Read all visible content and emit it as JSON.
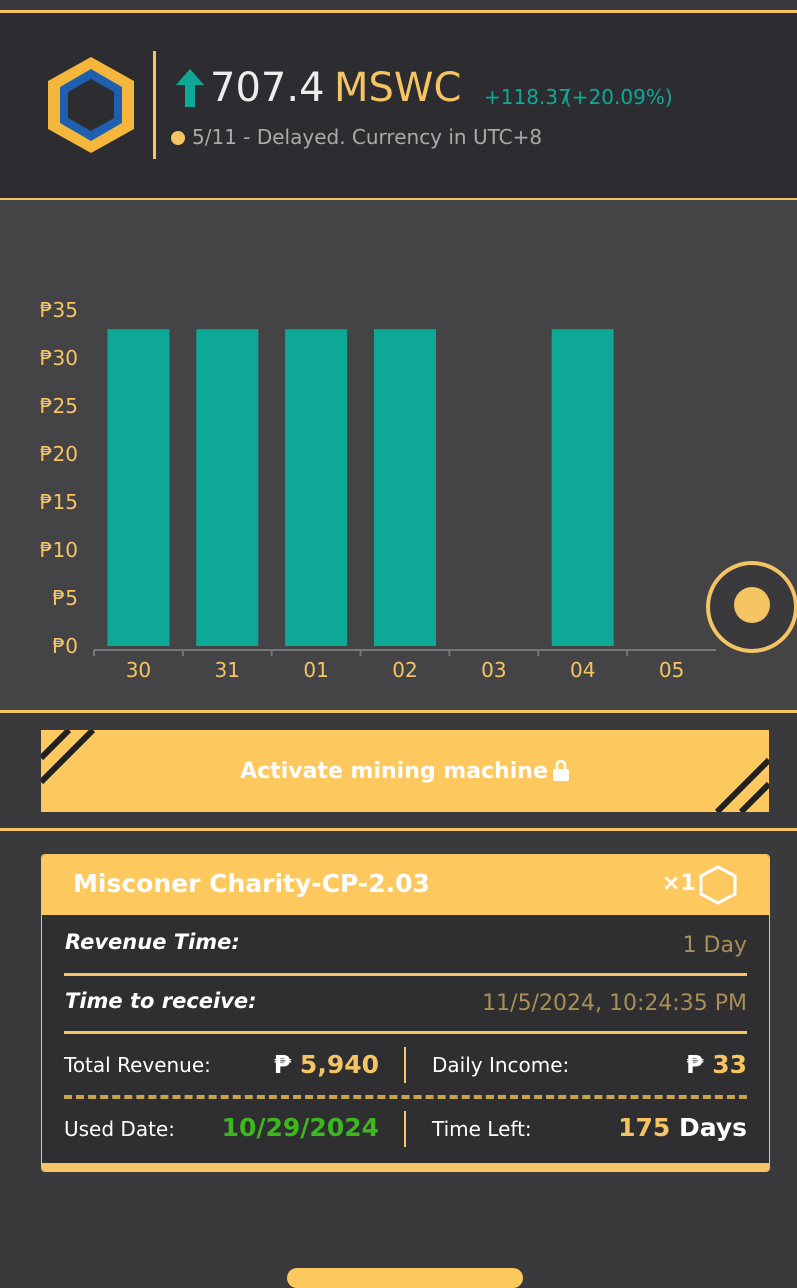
{
  "header": {
    "price": "707.4",
    "currency": "MSWC",
    "change": "+118.37",
    "change_pct": "(+20.09%)",
    "note": "5/11 - Delayed. Currency in UTC+8"
  },
  "chart_data": {
    "type": "bar",
    "categories": [
      "30",
      "31",
      "01",
      "02",
      "03",
      "04",
      "05"
    ],
    "values": [
      33,
      33,
      33,
      33,
      0,
      33,
      0
    ],
    "color": "#0ea896",
    "ylim": [
      0,
      35
    ],
    "yticks": [
      {
        "value": 0,
        "label": "₱0"
      },
      {
        "value": 5,
        "label": "₱5"
      },
      {
        "value": 10,
        "label": "₱10"
      },
      {
        "value": 15,
        "label": "₱15"
      },
      {
        "value": 20,
        "label": "₱20"
      },
      {
        "value": 25,
        "label": "₱25"
      },
      {
        "value": 30,
        "label": "₱30"
      },
      {
        "value": 35,
        "label": "₱35"
      }
    ]
  },
  "button": "Activate mining machine",
  "card": {
    "title": "Misconer Charity-CP-2.03",
    "quantity": "×1",
    "revenue_time": {
      "label": "Revenue Time:",
      "value": "1 Day"
    },
    "time_to_receive": {
      "label": "Time to receive:",
      "value": "11/5/2024, 10:24:35 PM"
    },
    "total_revenue": {
      "label": "Total Revenue:",
      "currency": "₱",
      "value": "5,940"
    },
    "daily_income": {
      "label": "Daily Income:",
      "currency": "₱",
      "value": "33"
    },
    "used_date": {
      "label": "Used Date:",
      "value": "10/29/2024"
    },
    "time_left": {
      "label": "Time Left:",
      "value": "175",
      "unit": "Days"
    }
  }
}
